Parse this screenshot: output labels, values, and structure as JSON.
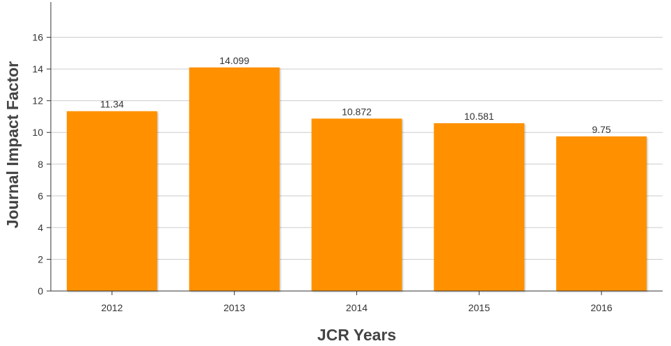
{
  "chart_data": {
    "type": "bar",
    "title": "",
    "xlabel": "JCR Years",
    "ylabel": "Journal Impact Factor",
    "categories": [
      "2012",
      "2013",
      "2014",
      "2015",
      "2016"
    ],
    "values": [
      11.34,
      14.099,
      10.872,
      10.581,
      9.75
    ],
    "data_labels": [
      "11.34",
      "14.099",
      "10.872",
      "10.581",
      "9.75"
    ],
    "ylim": [
      0,
      18
    ],
    "yticks": [
      "0",
      "2",
      "4",
      "6",
      "8",
      "10",
      "12",
      "14",
      "16"
    ],
    "grid": true,
    "legend": "none",
    "bar_color": "#ff9100"
  }
}
